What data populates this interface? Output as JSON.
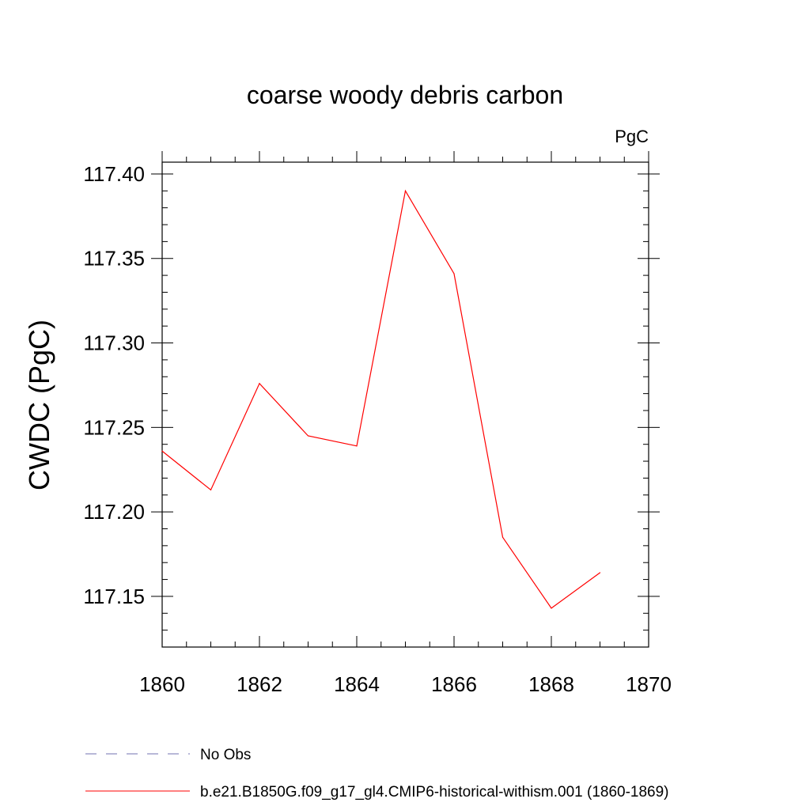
{
  "chart_data": {
    "type": "line",
    "title": "coarse woody debris carbon",
    "units": "PgC",
    "ylabel": "CWDC  (PgC)",
    "xlabel": "",
    "xlim": [
      1860,
      1870
    ],
    "ylim": [
      117.12,
      117.407
    ],
    "x_ticks": [
      1860,
      1862,
      1864,
      1866,
      1868,
      1870
    ],
    "x_tick_labels": [
      "1860",
      "1862",
      "1864",
      "1866",
      "1868",
      "1870"
    ],
    "y_ticks": [
      117.15,
      117.2,
      117.25,
      117.3,
      117.35,
      117.4
    ],
    "y_tick_labels": [
      "117.15",
      "117.20",
      "117.25",
      "117.30",
      "117.35",
      "117.40"
    ],
    "grid": false,
    "legend_placement": "bottom",
    "series": [
      {
        "name": "b.e21.B1850G.f09_g17_gl4.CMIP6-historical-withism.001 (1860-1869)",
        "color": "#ff0000",
        "style": "solid",
        "x": [
          1860,
          1861,
          1862,
          1863,
          1864,
          1865,
          1866,
          1867,
          1868,
          1869
        ],
        "y": [
          117.236,
          117.213,
          117.276,
          117.245,
          117.239,
          117.39,
          117.341,
          117.185,
          117.143,
          117.164
        ]
      }
    ],
    "legend": [
      {
        "label": "No Obs",
        "color": "#7070b0",
        "style": "dashed"
      },
      {
        "label": "b.e21.B1850G.f09_g17_gl4.CMIP6-historical-withism.001 (1860-1869)",
        "color": "#ff0000",
        "style": "solid"
      }
    ]
  }
}
